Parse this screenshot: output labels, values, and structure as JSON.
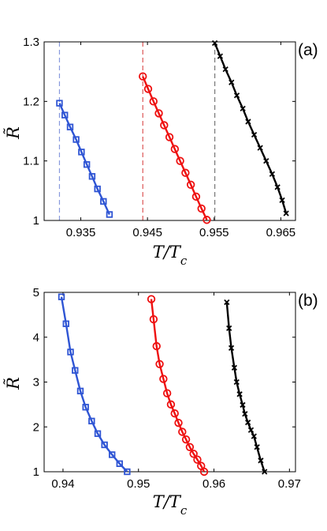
{
  "chart_data": [
    {
      "type": "line",
      "panel_label": "(a)",
      "xlabel": "T/T_c",
      "ylabel": "R̃",
      "xlim": [
        0.9295,
        0.9672
      ],
      "ylim": [
        1.0,
        1.3
      ],
      "xticks": [
        0.935,
        0.945,
        0.955,
        0.965
      ],
      "xtick_labels": [
        "0.935",
        "0.945",
        "0.955",
        "0.965"
      ],
      "yticks": [
        1.0,
        1.1,
        1.2,
        1.3
      ],
      "ytick_labels": [
        "1",
        "1.1",
        "1.2",
        "1.3"
      ],
      "vlines": [
        {
          "x": 0.9318,
          "color": "#8899dd"
        },
        {
          "x": 0.9443,
          "color": "#dd5555"
        },
        {
          "x": 0.9551,
          "color": "#777777"
        }
      ],
      "series": [
        {
          "color": "#2f55d4",
          "marker": "square",
          "x": [
            0.9318,
            0.9326,
            0.9334,
            0.9343,
            0.9351,
            0.9359,
            0.9367,
            0.9375,
            0.9384,
            0.9393
          ],
          "y": [
            1.197,
            1.177,
            1.157,
            1.136,
            1.115,
            1.094,
            1.074,
            1.053,
            1.032,
            1.01
          ]
        },
        {
          "color": "#ee1111",
          "marker": "circle",
          "x": [
            0.9443,
            0.9451,
            0.9459,
            0.9467,
            0.9475,
            0.9483,
            0.9491,
            0.9499,
            0.9507,
            0.9515,
            0.9523,
            0.9531,
            0.9539
          ],
          "y": [
            1.242,
            1.221,
            1.2,
            1.18,
            1.16,
            1.14,
            1.12,
            1.1,
            1.08,
            1.06,
            1.04,
            1.02,
            1.001
          ]
        },
        {
          "color": "#000000",
          "marker": "x",
          "x": [
            0.9551,
            0.9559,
            0.9567,
            0.9576,
            0.9584,
            0.9593,
            0.9601,
            0.961,
            0.9619,
            0.9628,
            0.9637,
            0.9645,
            0.9652,
            0.9658
          ],
          "y": [
            1.298,
            1.276,
            1.254,
            1.232,
            1.21,
            1.188,
            1.166,
            1.144,
            1.122,
            1.1,
            1.078,
            1.056,
            1.034,
            1.012
          ]
        }
      ]
    },
    {
      "type": "line",
      "panel_label": "(b)",
      "xlabel": "T/T_c",
      "ylabel": "R̃",
      "xlim": [
        0.9375,
        0.9708
      ],
      "ylim": [
        1,
        5
      ],
      "xticks": [
        0.94,
        0.95,
        0.96,
        0.97
      ],
      "xtick_labels": [
        "0.94",
        "0.95",
        "0.96",
        "0.97"
      ],
      "yticks": [
        1,
        2,
        3,
        4,
        5
      ],
      "ytick_labels": [
        "1",
        "2",
        "3",
        "4",
        "5"
      ],
      "vlines": [],
      "series": [
        {
          "color": "#2f55d4",
          "marker": "square",
          "x": [
            0.9398,
            0.9404,
            0.941,
            0.9416,
            0.9423,
            0.943,
            0.9438,
            0.9446,
            0.9455,
            0.9465,
            0.9475,
            0.9485
          ],
          "y": [
            4.9,
            4.3,
            3.67,
            3.26,
            2.8,
            2.44,
            2.13,
            1.85,
            1.6,
            1.38,
            1.18,
            1.0
          ]
        },
        {
          "color": "#ee1111",
          "marker": "circle",
          "x": [
            0.9517,
            0.952,
            0.9524,
            0.9528,
            0.9533,
            0.9538,
            0.9543,
            0.9548,
            0.9553,
            0.9558,
            0.9563,
            0.9568,
            0.9573,
            0.9578,
            0.9583,
            0.9587
          ],
          "y": [
            4.85,
            4.4,
            3.8,
            3.4,
            3.07,
            2.75,
            2.5,
            2.3,
            2.09,
            1.89,
            1.72,
            1.55,
            1.4,
            1.27,
            1.13,
            1.0
          ]
        },
        {
          "color": "#000000",
          "marker": "x",
          "x": [
            0.9617,
            0.962,
            0.9623,
            0.9627,
            0.963,
            0.9634,
            0.9638,
            0.9641,
            0.9645,
            0.9649,
            0.9653,
            0.9657,
            0.9662,
            0.9667
          ],
          "y": [
            4.78,
            4.2,
            3.76,
            3.32,
            3.0,
            2.73,
            2.49,
            2.29,
            2.1,
            1.93,
            1.79,
            1.55,
            1.25,
            1.0
          ]
        }
      ]
    }
  ]
}
